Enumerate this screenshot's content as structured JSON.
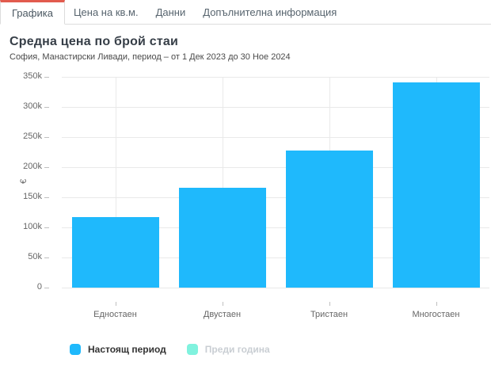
{
  "tabs": {
    "items": [
      {
        "label": "Графика",
        "active": true
      },
      {
        "label": "Цена на кв.м.",
        "active": false
      },
      {
        "label": "Данни",
        "active": false
      },
      {
        "label": "Допълнителна информация",
        "active": false
      }
    ]
  },
  "header": {
    "title": "Средна цена по брой стаи",
    "subtitle": "София, Манастирски Ливади, период – от 1 Дек 2023 до 30 Ное 2024"
  },
  "chart_data": {
    "type": "bar",
    "title": "Средна цена по брой стаи",
    "subtitle": "София, Манастирски Ливади, период – от 1 Дек 2023 до 30 Ное 2024",
    "categories": [
      "Едностаен",
      "Двустаен",
      "Тристаен",
      "Многостаен"
    ],
    "series": [
      {
        "name": "Настоящ период",
        "color": "#1fb9fc",
        "visible": true,
        "values": [
          117000,
          166000,
          227000,
          341000
        ]
      },
      {
        "name": "Преди година",
        "color": "#80f2de",
        "visible": false,
        "values": []
      }
    ],
    "xlabel": "",
    "ylabel": "€",
    "ylim": [
      0,
      350000
    ],
    "ytick_step": 50000,
    "ytick_labels": [
      "0",
      "50k",
      "100k",
      "150k",
      "200k",
      "250k",
      "300k",
      "350k"
    ],
    "grid": true,
    "legend_position": "bottom-left"
  },
  "colors": {
    "accent_red": "#e25b4e",
    "bar_blue": "#1fb9fc",
    "legend_teal": "#80f2de",
    "gridline": "#e9e9e9",
    "axis_text": "#666666",
    "disabled_legend_text": "#c9ced3"
  }
}
